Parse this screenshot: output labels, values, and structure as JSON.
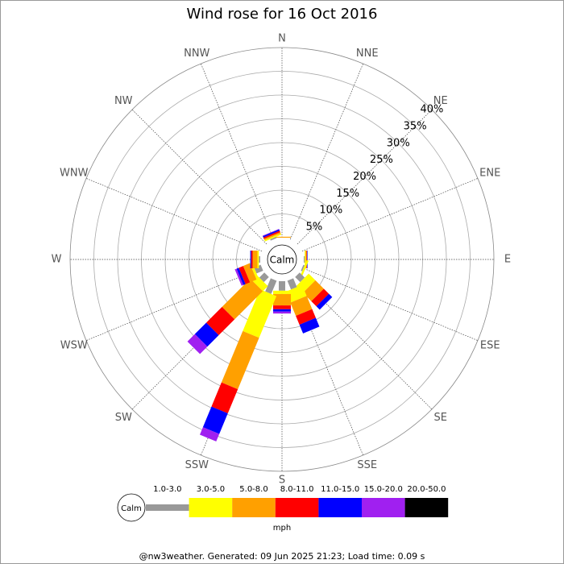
{
  "chart_data": {
    "type": "windrose",
    "title": "Wind rose for 16 Oct 2016",
    "calm_label": "Calm",
    "unit": "mph",
    "footer": "@nw3weather. Generated: 09 Jun 2025 21:23; Load time: 0.09 s",
    "categories": [
      "N",
      "NNE",
      "NE",
      "ENE",
      "E",
      "ESE",
      "SE",
      "SSE",
      "S",
      "SSW",
      "SW",
      "WSW",
      "W",
      "WNW",
      "NW",
      "NNW"
    ],
    "rlim": [
      0,
      40
    ],
    "rticks": [
      {
        "value": 5,
        "label": "5%"
      },
      {
        "value": 10,
        "label": "10%"
      },
      {
        "value": 15,
        "label": "15%"
      },
      {
        "value": 20,
        "label": "20%"
      },
      {
        "value": 25,
        "label": "25%"
      },
      {
        "value": 30,
        "label": "30%"
      },
      {
        "value": 35,
        "label": "35%"
      },
      {
        "value": 40,
        "label": "40%"
      }
    ],
    "series": [
      {
        "name": "1.0-3.0",
        "color": "#999999",
        "values": [
          0,
          0,
          0,
          0,
          0.2,
          0.3,
          1.5,
          2.0,
          2.0,
          3.0,
          1.5,
          1.5,
          0.3,
          0,
          0,
          0.3
        ]
      },
      {
        "name": "3.0-5.0",
        "color": "#ffff00",
        "values": [
          0,
          0,
          0,
          0,
          0.2,
          0.4,
          2.0,
          2.5,
          0.7,
          9.5,
          1.5,
          0.5,
          0.3,
          0,
          0,
          0.3
        ]
      },
      {
        "name": "5.0-8.0",
        "color": "#ffa000",
        "values": [
          0.2,
          0,
          0,
          0,
          0.2,
          0,
          2.5,
          3.0,
          2.4,
          11.7,
          8.4,
          1.5,
          1.0,
          0,
          0,
          0.3
        ]
      },
      {
        "name": "8.0-11.0",
        "color": "#ff0000",
        "values": [
          0,
          0,
          0,
          0,
          0.1,
          0,
          1.5,
          2.0,
          0.8,
          5.5,
          4.7,
          1.0,
          0.3,
          0,
          0,
          0.3
        ]
      },
      {
        "name": "11.0-15.0",
        "color": "#0000ff",
        "values": [
          0,
          0,
          0,
          0,
          0.1,
          0,
          1.0,
          2.0,
          0.5,
          4.7,
          3.4,
          0.5,
          0.2,
          0,
          0,
          0.3
        ]
      },
      {
        "name": "15.0-20.0",
        "color": "#a020f0",
        "values": [
          0,
          0,
          0,
          0,
          0,
          0,
          0,
          0,
          0.4,
          1.7,
          2.2,
          0.4,
          0,
          0,
          0,
          0.1
        ]
      },
      {
        "name": "20.0-50.0",
        "color": "#000000",
        "values": [
          0,
          0,
          0,
          0,
          0,
          0,
          0,
          0,
          0,
          0,
          0,
          0,
          0,
          0,
          0,
          0
        ]
      }
    ]
  }
}
